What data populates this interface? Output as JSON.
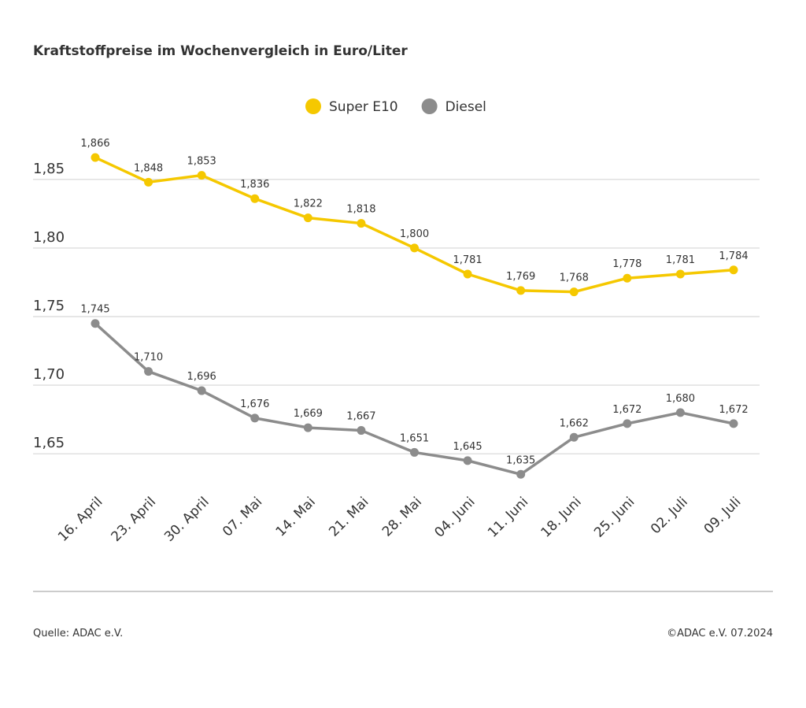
{
  "chart_data": {
    "type": "line",
    "title": "Kraftstoffpreise im Wochenvergleich in Euro/Liter",
    "categories": [
      "16. April",
      "23. April",
      "30. April",
      "07. Mai",
      "14. Mai",
      "21. Mai",
      "28. Mai",
      "04. Juni",
      "11. Juni",
      "18. Juni",
      "25. Juni",
      "02. Juli",
      "09. Juli"
    ],
    "series": [
      {
        "name": "Super E10",
        "color": "#f5c800",
        "values": [
          1.866,
          1.848,
          1.853,
          1.836,
          1.822,
          1.818,
          1.8,
          1.781,
          1.769,
          1.768,
          1.778,
          1.781,
          1.784
        ],
        "value_labels": [
          "1,866",
          "1,848",
          "1,853",
          "1,836",
          "1,822",
          "1,818",
          "1,800",
          "1,781",
          "1,769",
          "1,768",
          "1,778",
          "1,781",
          "1,784"
        ]
      },
      {
        "name": "Diesel",
        "color": "#8c8c8c",
        "values": [
          1.745,
          1.71,
          1.696,
          1.676,
          1.669,
          1.667,
          1.651,
          1.645,
          1.635,
          1.662,
          1.672,
          1.68,
          1.672
        ],
        "value_labels": [
          "1,745",
          "1,710",
          "1,696",
          "1,676",
          "1,669",
          "1,667",
          "1,651",
          "1,645",
          "1,635",
          "1,662",
          "1,672",
          "1,680",
          "1,672"
        ]
      }
    ],
    "ylim": [
      1.63,
      1.87
    ],
    "yticks": [
      {
        "value": 1.65,
        "label": "1,65"
      },
      {
        "value": 1.7,
        "label": "1,70"
      },
      {
        "value": 1.75,
        "label": "1,75"
      },
      {
        "value": 1.8,
        "label": "1,80"
      },
      {
        "value": 1.85,
        "label": "1,85"
      }
    ],
    "grid": true,
    "legend": "top",
    "source": "Quelle: ADAC e.V.",
    "credit": "©ADAC e.V. 07.2024"
  }
}
